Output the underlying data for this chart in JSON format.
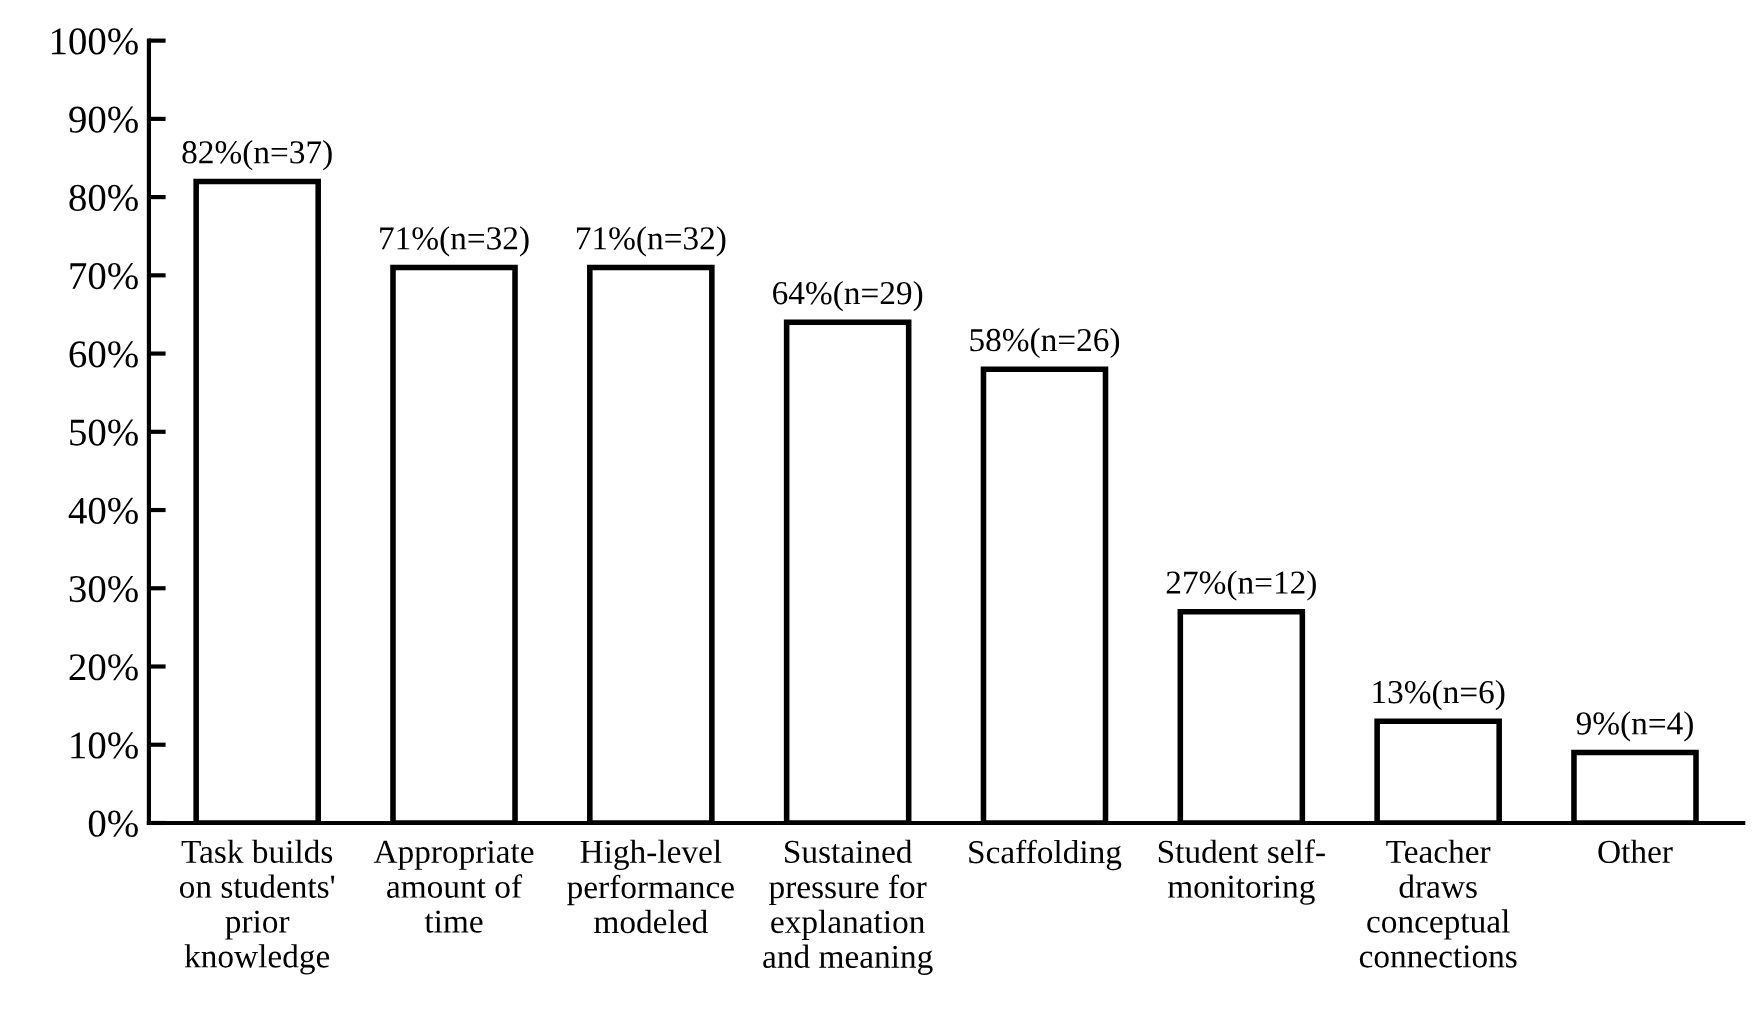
{
  "chart_data": {
    "type": "bar",
    "categories": [
      "Task builds\non students'\nprior\nknowledge",
      "Appropriate\namount of\ntime",
      "High-level\nperformance\nmodeled",
      "Sustained\npressure for\nexplanation\nand meaning",
      "Scaffolding",
      "Student self-\nmonitoring",
      "Teacher\ndraws\nconceptual\nconnections",
      "Other"
    ],
    "values": [
      82,
      71,
      71,
      64,
      58,
      27,
      13,
      9
    ],
    "value_labels": [
      "82%(n=37)",
      "71%(n=32)",
      "71%(n=32)",
      "64%(n=29)",
      "58%(n=26)",
      "27%(n=12)",
      "13%(n=6)",
      "9%(n=4)"
    ],
    "color": "#ffffff",
    "ylim": [
      0,
      100
    ],
    "yticks": [
      {
        "value": 0,
        "label": "0%"
      },
      {
        "value": 10,
        "label": "10%"
      },
      {
        "value": 20,
        "label": "20%"
      },
      {
        "value": 30,
        "label": "30%"
      },
      {
        "value": 40,
        "label": "40%"
      },
      {
        "value": 50,
        "label": "50%"
      },
      {
        "value": 60,
        "label": "60%"
      },
      {
        "value": 70,
        "label": "70%"
      },
      {
        "value": 80,
        "label": "80%"
      },
      {
        "value": 90,
        "label": "90%"
      },
      {
        "value": 100,
        "label": "100%"
      }
    ],
    "grid": false,
    "legend": false
  }
}
